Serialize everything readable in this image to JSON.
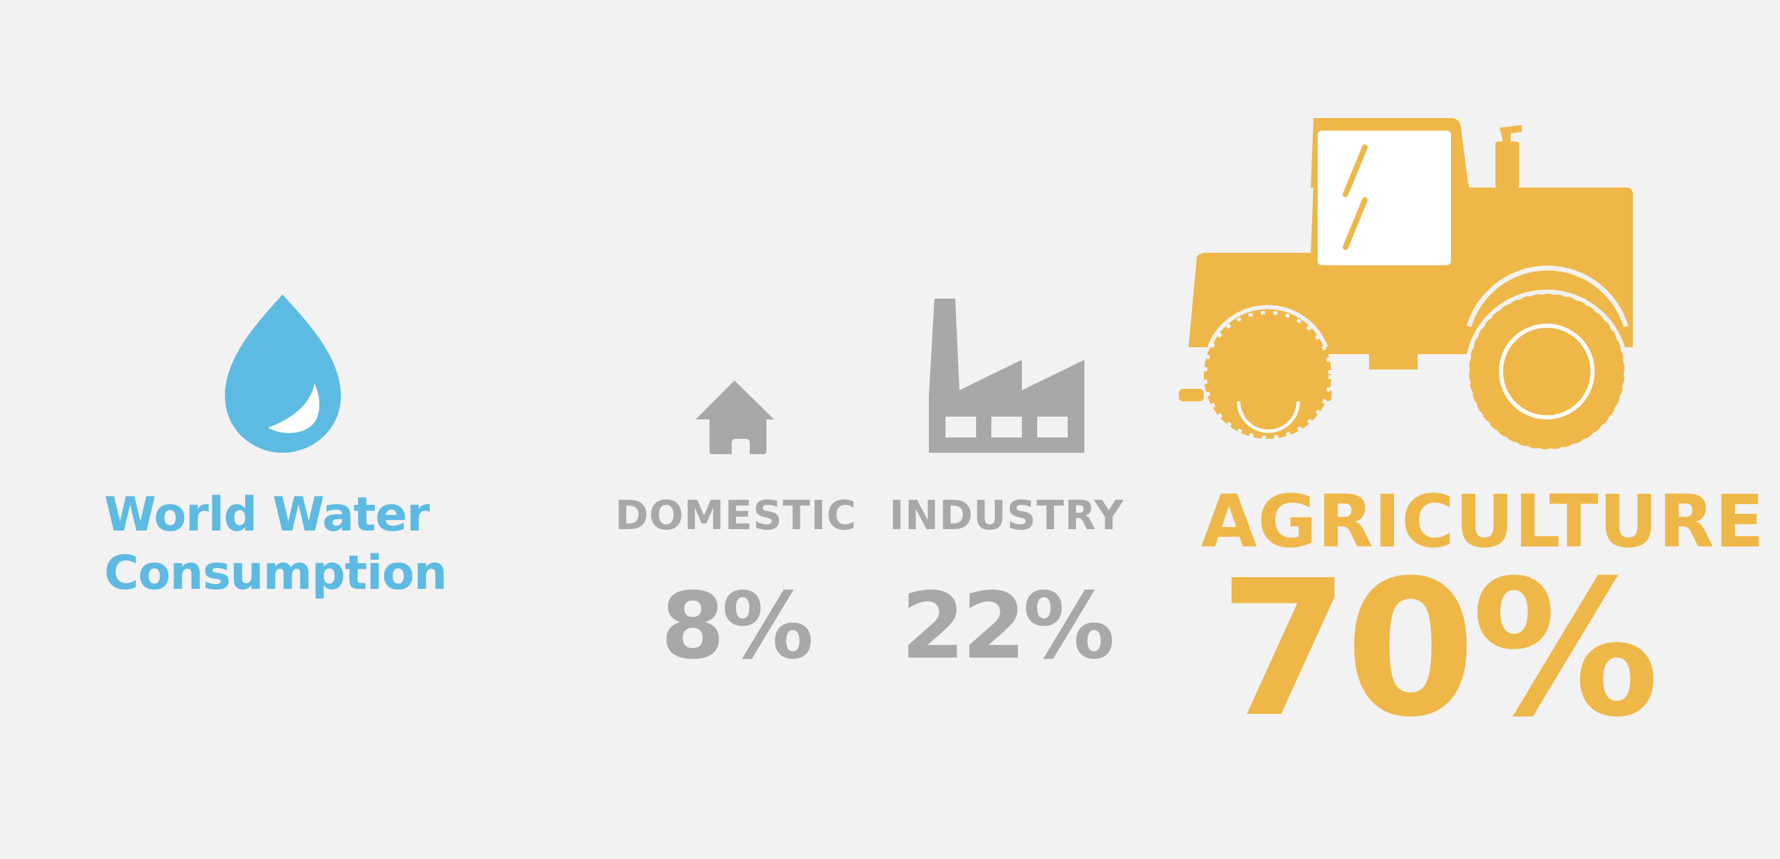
{
  "title": {
    "line1": "World Water",
    "line2": "Consumption"
  },
  "categories": [
    {
      "label": "DOMESTIC",
      "value_text": "8%",
      "icon": "house-icon"
    },
    {
      "label": "INDUSTRY",
      "value_text": "22%",
      "icon": "factory-icon"
    },
    {
      "label": "AGRICULTURE",
      "value_text": "70%",
      "icon": "tractor-icon"
    }
  ],
  "colors": {
    "background": "#f2f2f2",
    "water": "#5dbae2",
    "grey": "#a8a8a8",
    "agriculture": "#efb748"
  },
  "icons": {
    "title": "water-drop-icon"
  }
}
